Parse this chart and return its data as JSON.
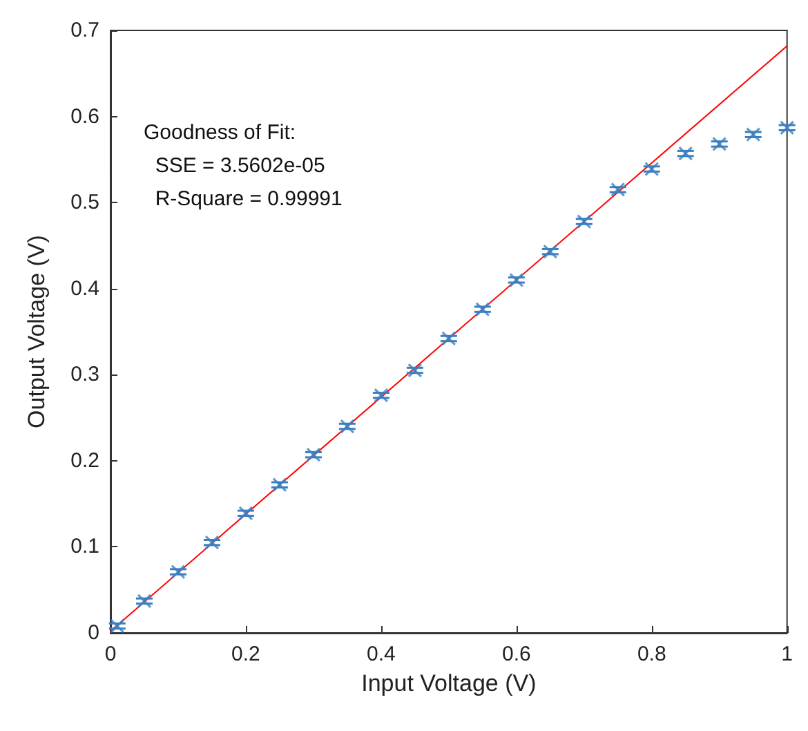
{
  "chart_data": {
    "type": "scatter",
    "xlabel": "Input Voltage (V)",
    "ylabel": "Output Voltage (V)",
    "xlim": [
      0,
      1
    ],
    "xticks": [
      0,
      0.2,
      0.4,
      0.6,
      0.8,
      1
    ],
    "ylim": [
      0,
      0.7
    ],
    "yticks": [
      0,
      0.1,
      0.2,
      0.3,
      0.4,
      0.5,
      0.6,
      0.7
    ],
    "grid": false,
    "annotations": [
      "Goodness of Fit:",
      "  SSE = 3.5602e-05",
      "  R-Square = 0.99991"
    ],
    "series": [
      {
        "color": "#3a7fc0",
        "marker": "cross",
        "x": [
          0.01,
          0.05,
          0.1,
          0.15,
          0.2,
          0.25,
          0.3,
          0.35,
          0.4,
          0.45,
          0.5,
          0.55,
          0.6,
          0.65,
          0.7,
          0.75,
          0.8,
          0.85,
          0.9,
          0.95,
          1
        ],
        "values": [
          0.008,
          0.037,
          0.071,
          0.105,
          0.139,
          0.172,
          0.207,
          0.24,
          0.276,
          0.305,
          0.342,
          0.376,
          0.41,
          0.443,
          0.478,
          0.515,
          0.539,
          0.557,
          0.568,
          0.579,
          0.587
        ],
        "errors": [
          0.003,
          0.003,
          0.003,
          0.003,
          0.003,
          0.003,
          0.003,
          0.003,
          0.003,
          0.003,
          0.003,
          0.003,
          0.003,
          0.003,
          0.003,
          0.003,
          0.003,
          0.003,
          0.003,
          0.003,
          0.003
        ]
      },
      {
        "type": "line",
        "color": "#ff0000",
        "x": [
          0,
          1
        ],
        "values": [
          0.002,
          0.682
        ]
      }
    ]
  }
}
